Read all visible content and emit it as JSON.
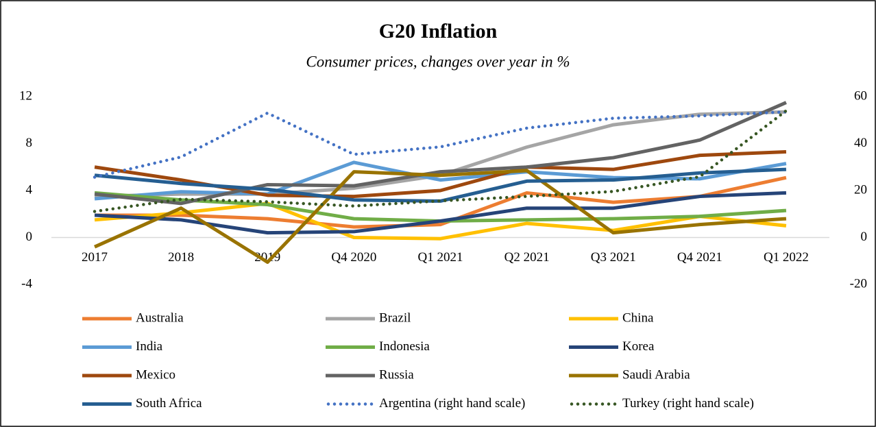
{
  "chart_data": {
    "type": "line",
    "title": "G20 Inflation",
    "subtitle": "Consumer prices, changes over year in %",
    "categories": [
      "2017",
      "2018",
      "2019",
      "Q4 2020",
      "Q1 2021",
      "Q2 2021",
      "Q3 2021",
      "Q4 2021",
      "Q1 2022"
    ],
    "ylim": [
      -4,
      12
    ],
    "yticks": [
      -4,
      0,
      4,
      8,
      12
    ],
    "y2lim": [
      -20,
      60
    ],
    "y2ticks": [
      -20,
      0,
      20,
      40,
      60
    ],
    "grid": false,
    "series": [
      {
        "name": "Australia",
        "color": "#ed7d31",
        "values": [
          1.9,
          1.9,
          1.6,
          0.9,
          1.1,
          3.8,
          3.0,
          3.5,
          5.1
        ]
      },
      {
        "name": "Brazil",
        "color": "#a5a5a5",
        "values": [
          3.5,
          3.7,
          3.7,
          4.2,
          5.3,
          7.7,
          9.6,
          10.5,
          10.7
        ]
      },
      {
        "name": "China",
        "color": "#ffc000",
        "values": [
          1.5,
          2.1,
          2.9,
          0.0,
          -0.1,
          1.2,
          0.6,
          1.8,
          1.0
        ]
      },
      {
        "name": "India",
        "color": "#5b9bd5",
        "values": [
          3.3,
          3.9,
          3.7,
          6.4,
          4.9,
          5.6,
          5.1,
          5.0,
          6.3
        ]
      },
      {
        "name": "Indonesia",
        "color": "#70ad47",
        "values": [
          3.8,
          3.2,
          2.8,
          1.6,
          1.4,
          1.5,
          1.6,
          1.8,
          2.3
        ]
      },
      {
        "name": "Korea",
        "color": "#264478",
        "values": [
          1.9,
          1.5,
          0.4,
          0.5,
          1.4,
          2.5,
          2.5,
          3.5,
          3.8
        ]
      },
      {
        "name": "Mexico",
        "color": "#9e480e",
        "values": [
          6.0,
          4.9,
          3.6,
          3.5,
          4.0,
          6.0,
          5.8,
          7.0,
          7.3
        ]
      },
      {
        "name": "Russia",
        "color": "#636363",
        "values": [
          3.7,
          2.9,
          4.5,
          4.4,
          5.6,
          6.0,
          6.8,
          8.3,
          11.5
        ]
      },
      {
        "name": "Saudi Arabia",
        "color": "#997300",
        "values": [
          -0.8,
          2.5,
          -2.1,
          5.6,
          5.3,
          5.7,
          0.4,
          1.1,
          1.6
        ]
      },
      {
        "name": "South Africa",
        "color": "#255e91",
        "values": [
          5.3,
          4.6,
          4.1,
          3.2,
          3.1,
          4.8,
          4.9,
          5.5,
          5.8
        ]
      },
      {
        "name": "Argentina (right hand scale)",
        "color": "#4472c4",
        "axis": "y2",
        "dotted": true,
        "values": [
          25.7,
          34.3,
          53.0,
          35.4,
          38.6,
          46.6,
          50.8,
          51.8,
          53.5
        ]
      },
      {
        "name": "Turkey (right hand scale)",
        "color": "#375623",
        "axis": "y2",
        "dotted": true,
        "values": [
          11.1,
          16.3,
          15.2,
          13.4,
          15.6,
          17.5,
          19.6,
          25.9,
          54.0
        ]
      }
    ]
  }
}
